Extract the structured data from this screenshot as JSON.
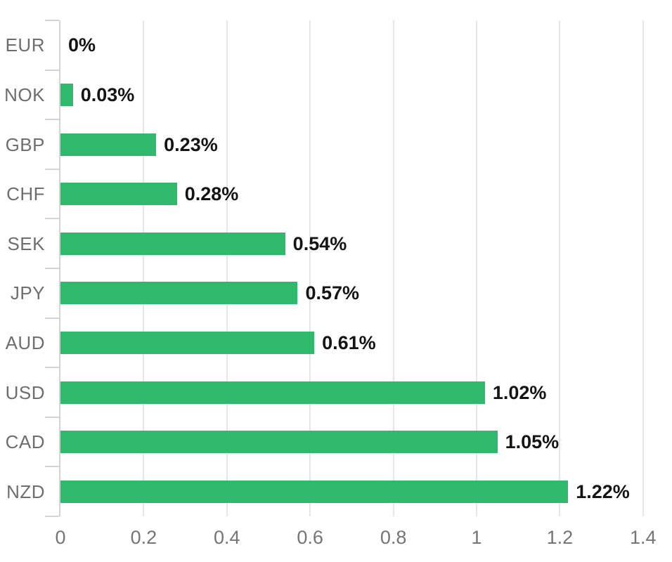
{
  "chart_data": {
    "type": "bar",
    "orientation": "horizontal",
    "title": "",
    "xlabel": "",
    "ylabel": "",
    "categories": [
      "EUR",
      "NOK",
      "GBP",
      "CHF",
      "SEK",
      "JPY",
      "AUD",
      "USD",
      "CAD",
      "NZD"
    ],
    "values": [
      0,
      0.03,
      0.23,
      0.28,
      0.54,
      0.57,
      0.61,
      1.02,
      1.05,
      1.22
    ],
    "value_labels": [
      "0%",
      "0.03%",
      "0.23%",
      "0.28%",
      "0.54%",
      "0.57%",
      "0.61%",
      "1.02%",
      "1.05%",
      "1.22%"
    ],
    "x_tick_labels": [
      "0",
      "0.2",
      "0.4",
      "0.6",
      "0.8",
      "1",
      "1.2",
      "1.4"
    ],
    "x_tick_values": [
      0,
      0.2,
      0.4,
      0.6,
      0.8,
      1,
      1.2,
      1.4
    ],
    "xlim": [
      0,
      1.4
    ],
    "grid": true,
    "legend": false,
    "colors": {
      "bar": "#30b86c",
      "gridline": "#e6e6e8",
      "axis": "#d4d4d8",
      "category_label": "#6e6e6e",
      "value_label": "#141414",
      "x_tick_label": "#757575",
      "background": "#ffffff"
    }
  }
}
